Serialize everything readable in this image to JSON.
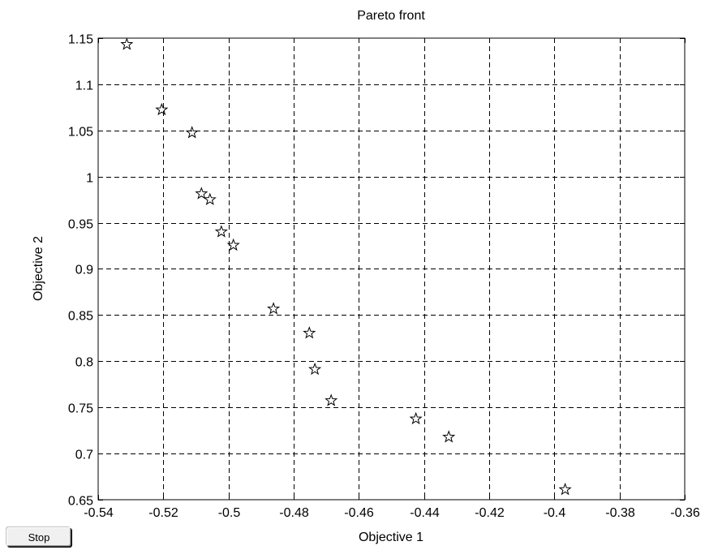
{
  "figure": {
    "stop_label": "Stop"
  },
  "chart_data": {
    "type": "scatter",
    "title": "Pareto front",
    "xlabel": "Objective 1",
    "ylabel": "Objective 2",
    "xlim": [
      -0.54,
      -0.36
    ],
    "ylim": [
      0.65,
      1.15
    ],
    "xticks": [
      -0.54,
      -0.52,
      -0.5,
      -0.48,
      -0.46,
      -0.44,
      -0.42,
      -0.4,
      -0.38,
      -0.36
    ],
    "xtick_labels": [
      "-0.54",
      "-0.52",
      "-0.5",
      "-0.48",
      "-0.46",
      "-0.44",
      "-0.42",
      "-0.4",
      "-0.38",
      "-0.36"
    ],
    "yticks": [
      0.65,
      0.7,
      0.75,
      0.8,
      0.85,
      0.9,
      0.95,
      1.0,
      1.05,
      1.1,
      1.15
    ],
    "ytick_labels": [
      "0.65",
      "0.7",
      "0.75",
      "0.8",
      "0.85",
      "0.9",
      "0.95",
      "1",
      "1.05",
      "1.1",
      "1.15"
    ],
    "grid": true,
    "marker": "star",
    "marker_color": "#000000",
    "points": [
      {
        "x": -0.5312,
        "y": 1.1432
      },
      {
        "x": -0.5205,
        "y": 1.0724
      },
      {
        "x": -0.5112,
        "y": 1.0475
      },
      {
        "x": -0.5083,
        "y": 0.9815
      },
      {
        "x": -0.5057,
        "y": 0.9751
      },
      {
        "x": -0.5022,
        "y": 0.9402
      },
      {
        "x": -0.4985,
        "y": 0.9257
      },
      {
        "x": -0.4862,
        "y": 0.8568
      },
      {
        "x": -0.4752,
        "y": 0.8305
      },
      {
        "x": -0.4735,
        "y": 0.7912
      },
      {
        "x": -0.4685,
        "y": 0.7573
      },
      {
        "x": -0.4425,
        "y": 0.7376
      },
      {
        "x": -0.4324,
        "y": 0.7179
      },
      {
        "x": -0.3967,
        "y": 0.661
      }
    ]
  }
}
